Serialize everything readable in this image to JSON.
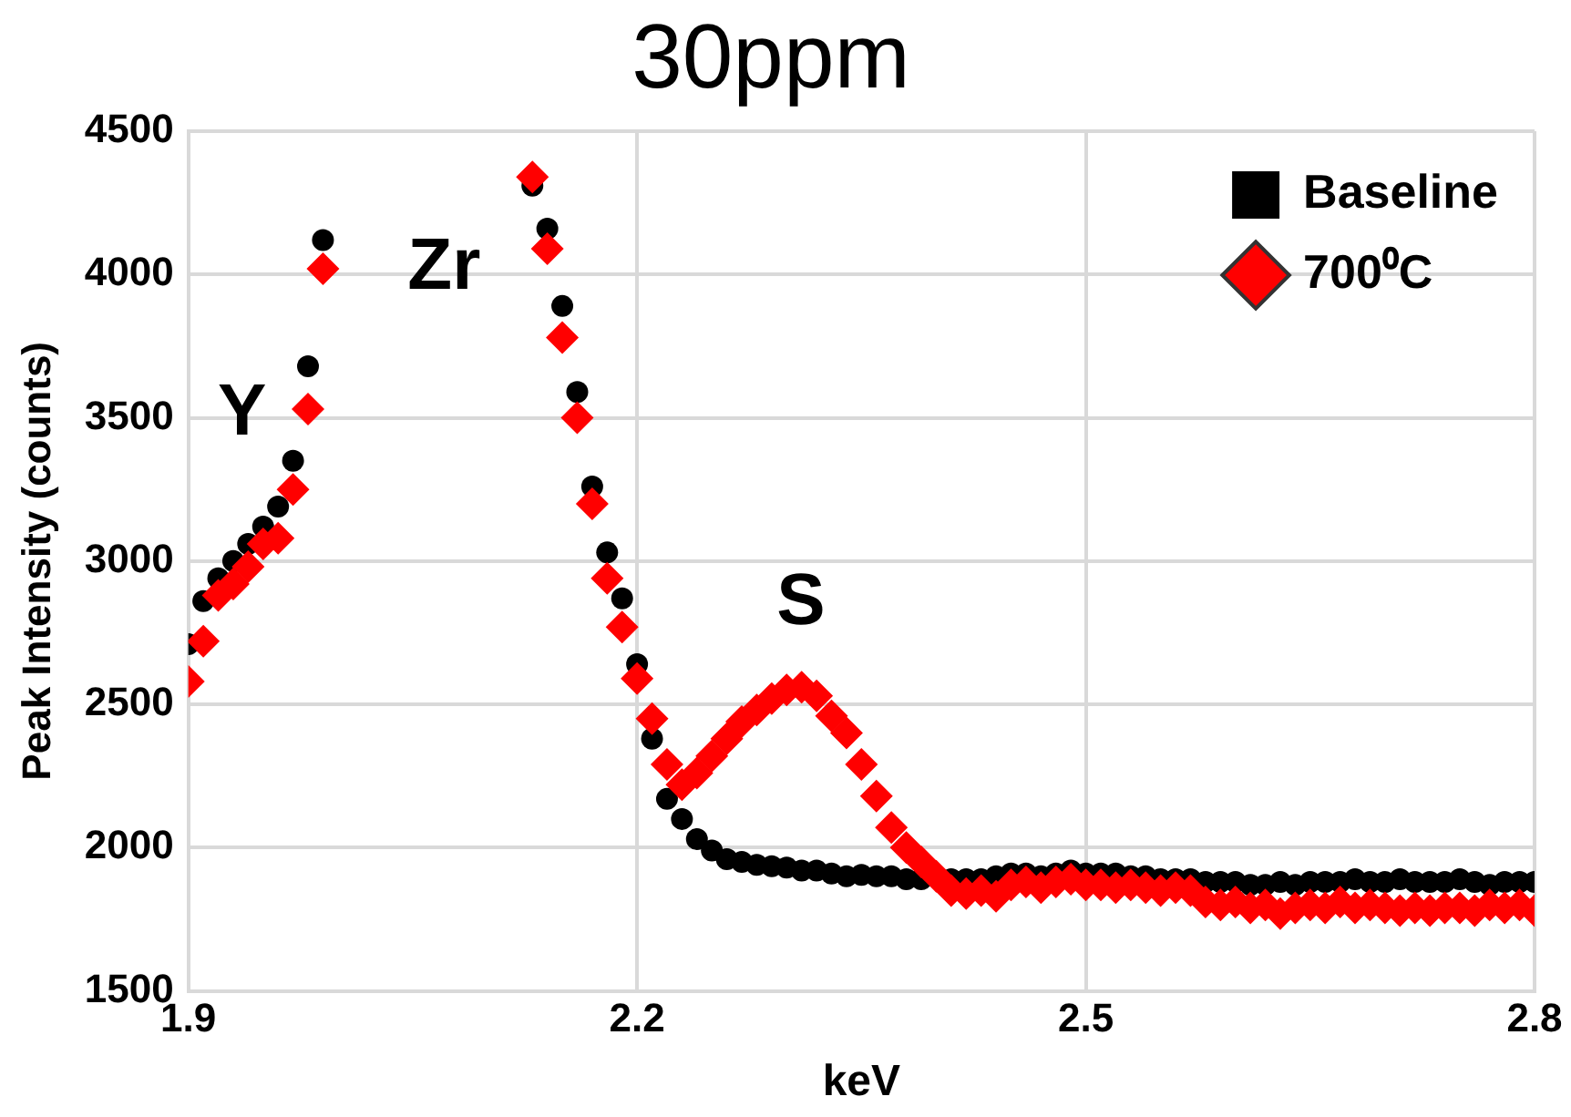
{
  "chart_data": {
    "type": "scatter",
    "title": "30ppm",
    "xlabel": "keV",
    "ylabel": "Peak Intensity (counts)",
    "xlim": [
      1.9,
      2.8
    ],
    "xticks": [
      1.9,
      2.2,
      2.5,
      2.8
    ],
    "ylim": [
      1500,
      4500
    ],
    "yticks": [
      1500,
      2000,
      2500,
      3000,
      3500,
      4000,
      4500
    ],
    "grid": true,
    "legend": "top right",
    "annotations": [
      "Y",
      "Zr",
      "S"
    ],
    "series": [
      {
        "name": "Baseline",
        "color": "#000000",
        "marker": "circle",
        "x": [
          1.9,
          1.91,
          1.92,
          1.93,
          1.94,
          1.95,
          1.96,
          1.97,
          1.98,
          1.99,
          2.13,
          2.14,
          2.15,
          2.16,
          2.17,
          2.18,
          2.19,
          2.2,
          2.21,
          2.22,
          2.23,
          2.24,
          2.25,
          2.26,
          2.27,
          2.28,
          2.29,
          2.3,
          2.31,
          2.32,
          2.33,
          2.34,
          2.35,
          2.36,
          2.37,
          2.38,
          2.39,
          2.4,
          2.41,
          2.42,
          2.43,
          2.44,
          2.45,
          2.46,
          2.47,
          2.48,
          2.49,
          2.5,
          2.51,
          2.52,
          2.53,
          2.54,
          2.55,
          2.56,
          2.57,
          2.58,
          2.59,
          2.6,
          2.61,
          2.62,
          2.63,
          2.64,
          2.65,
          2.66,
          2.67,
          2.68,
          2.69,
          2.7,
          2.71,
          2.72,
          2.73,
          2.74,
          2.75,
          2.76,
          2.77,
          2.78,
          2.79,
          2.8
        ],
        "values": [
          2710,
          2860,
          2940,
          3000,
          3060,
          3120,
          3190,
          3350,
          3680,
          4120,
          4310,
          4160,
          3890,
          3590,
          3260,
          3030,
          2870,
          2640,
          2380,
          2170,
          2100,
          2030,
          1990,
          1960,
          1950,
          1940,
          1935,
          1930,
          1920,
          1920,
          1910,
          1900,
          1905,
          1900,
          1900,
          1890,
          1890,
          null,
          1890,
          1890,
          1890,
          1900,
          1910,
          1910,
          1900,
          1910,
          1920,
          1910,
          1910,
          1910,
          1900,
          1900,
          1890,
          1890,
          1890,
          1880,
          1880,
          1880,
          1870,
          1870,
          1880,
          1870,
          1880,
          1880,
          1880,
          1890,
          1880,
          1880,
          1890,
          1880,
          1880,
          1880,
          1890,
          1880,
          1870,
          1880,
          1880,
          1880
        ]
      },
      {
        "name": "700⁰C",
        "color": "#ff0000",
        "marker": "diamond",
        "x": [
          1.9,
          1.91,
          1.92,
          1.93,
          1.94,
          1.95,
          1.96,
          1.97,
          1.98,
          1.99,
          2.13,
          2.14,
          2.15,
          2.16,
          2.17,
          2.18,
          2.19,
          2.2,
          2.21,
          2.22,
          2.23,
          2.24,
          2.25,
          2.26,
          2.27,
          2.28,
          2.29,
          2.3,
          2.31,
          2.32,
          2.33,
          2.34,
          2.35,
          2.36,
          2.37,
          2.38,
          2.39,
          2.4,
          2.41,
          2.42,
          2.43,
          2.44,
          2.45,
          2.46,
          2.47,
          2.48,
          2.49,
          2.5,
          2.51,
          2.52,
          2.53,
          2.54,
          2.55,
          2.56,
          2.57,
          2.58,
          2.59,
          2.6,
          2.61,
          2.62,
          2.63,
          2.64,
          2.65,
          2.66,
          2.67,
          2.68,
          2.69,
          2.7,
          2.71,
          2.72,
          2.73,
          2.74,
          2.75,
          2.76,
          2.77,
          2.78,
          2.79,
          2.8
        ],
        "values": [
          2580,
          2720,
          2880,
          2920,
          2980,
          3060,
          3080,
          3250,
          3530,
          4020,
          4340,
          4090,
          3780,
          3500,
          3200,
          2940,
          2770,
          2590,
          2450,
          2290,
          2220,
          2260,
          2320,
          2380,
          2440,
          2480,
          2520,
          2550,
          2560,
          2530,
          2460,
          2400,
          2290,
          2180,
          2070,
          2000,
          1950,
          1900,
          1850,
          1840,
          1850,
          1830,
          1870,
          1880,
          1860,
          1880,
          1890,
          1870,
          1870,
          1860,
          1870,
          1860,
          1850,
          1860,
          1850,
          1810,
          1800,
          1810,
          1790,
          1800,
          1770,
          1790,
          1800,
          1790,
          1810,
          1790,
          1800,
          1790,
          1780,
          1790,
          1780,
          1790,
          1790,
          1780,
          1800,
          1790,
          1800,
          1780
        ]
      }
    ]
  }
}
